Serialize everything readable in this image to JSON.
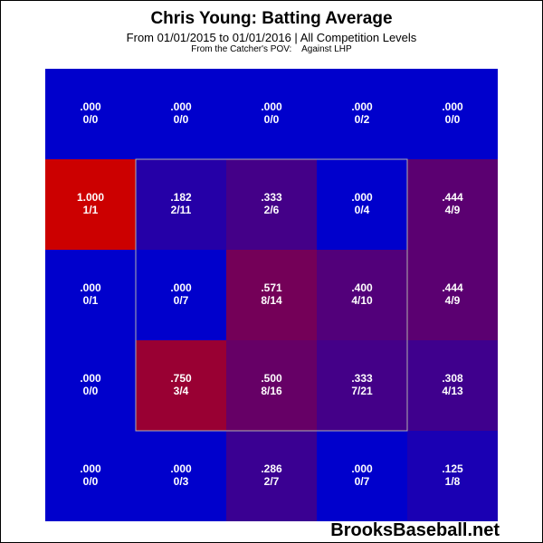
{
  "chart_data": {
    "type": "heatmap",
    "title": "Chris Young: Batting Average",
    "subtitle": "From 01/01/2015 to 01/01/2016 | All Competition Levels",
    "note_pov": "From the Catcher's POV:",
    "note_split": "Against LHP",
    "rows": 5,
    "cols": 5,
    "strike_zone": {
      "rows": [
        1,
        3
      ],
      "cols": [
        1,
        3
      ]
    },
    "colors": {
      "low": "#0000cc",
      "high": "#cc0000",
      "zone_border": "#b0b0b0",
      "text": "#ffffff"
    },
    "cells": [
      [
        {
          "avg": ".000",
          "ratio": "0/0",
          "value": 0.0
        },
        {
          "avg": ".000",
          "ratio": "0/0",
          "value": 0.0
        },
        {
          "avg": ".000",
          "ratio": "0/0",
          "value": 0.0
        },
        {
          "avg": ".000",
          "ratio": "0/2",
          "value": 0.0
        },
        {
          "avg": ".000",
          "ratio": "0/0",
          "value": 0.0
        }
      ],
      [
        {
          "avg": "1.000",
          "ratio": "1/1",
          "value": 1.0
        },
        {
          "avg": ".182",
          "ratio": "2/11",
          "value": 0.182
        },
        {
          "avg": ".333",
          "ratio": "2/6",
          "value": 0.333
        },
        {
          "avg": ".000",
          "ratio": "0/4",
          "value": 0.0
        },
        {
          "avg": ".444",
          "ratio": "4/9",
          "value": 0.444
        }
      ],
      [
        {
          "avg": ".000",
          "ratio": "0/1",
          "value": 0.0
        },
        {
          "avg": ".000",
          "ratio": "0/7",
          "value": 0.0
        },
        {
          "avg": ".571",
          "ratio": "8/14",
          "value": 0.571
        },
        {
          "avg": ".400",
          "ratio": "4/10",
          "value": 0.4
        },
        {
          "avg": ".444",
          "ratio": "4/9",
          "value": 0.444
        }
      ],
      [
        {
          "avg": ".000",
          "ratio": "0/0",
          "value": 0.0
        },
        {
          "avg": ".750",
          "ratio": "3/4",
          "value": 0.75
        },
        {
          "avg": ".500",
          "ratio": "8/16",
          "value": 0.5
        },
        {
          "avg": ".333",
          "ratio": "7/21",
          "value": 0.333
        },
        {
          "avg": ".308",
          "ratio": "4/13",
          "value": 0.308
        }
      ],
      [
        {
          "avg": ".000",
          "ratio": "0/0",
          "value": 0.0
        },
        {
          "avg": ".000",
          "ratio": "0/3",
          "value": 0.0
        },
        {
          "avg": ".286",
          "ratio": "2/7",
          "value": 0.286
        },
        {
          "avg": ".000",
          "ratio": "0/7",
          "value": 0.0
        },
        {
          "avg": ".125",
          "ratio": "1/8",
          "value": 0.125
        }
      ]
    ]
  },
  "watermark": "BrooksBaseball.net"
}
